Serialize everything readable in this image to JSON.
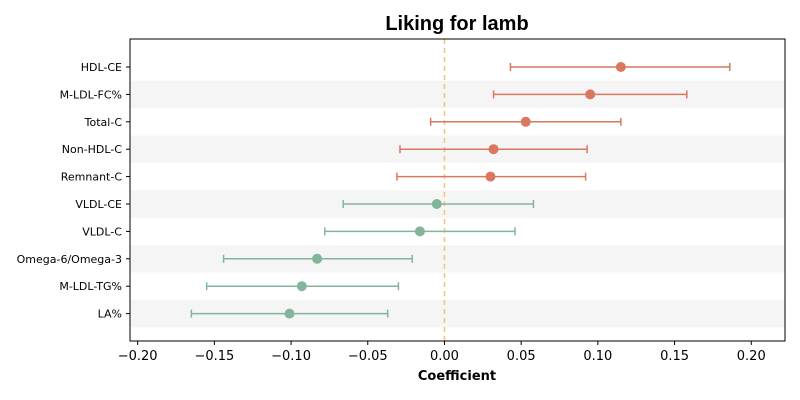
{
  "chart_data": {
    "type": "scatter",
    "title": "Liking for lamb",
    "xlabel": "Coefficient",
    "ylabel": "",
    "xlim": [
      -0.205,
      0.222
    ],
    "xticks": [
      -0.2,
      -0.15,
      -0.1,
      -0.05,
      0.0,
      0.05,
      0.1,
      0.15,
      0.2
    ],
    "xtick_labels": [
      "−0.20",
      "−0.15",
      "−0.10",
      "−0.05",
      "0.00",
      "0.05",
      "0.10",
      "0.15",
      "0.20"
    ],
    "reference_line": {
      "x": 0,
      "color": "#f5c27a",
      "style": "dashed"
    },
    "categories": [
      "HDL-CE",
      "M-LDL-FC%",
      "Total-C",
      "Non-HDL-C",
      "Remnant-C",
      "VLDL-CE",
      "VLDL-C",
      "Omega-6/Omega-3",
      "M-LDL-TG%",
      "LA%"
    ],
    "estimates": [
      0.115,
      0.095,
      0.053,
      0.032,
      0.03,
      -0.005,
      -0.016,
      -0.083,
      -0.093,
      -0.101
    ],
    "ci_low": [
      0.043,
      0.032,
      -0.009,
      -0.029,
      -0.031,
      -0.066,
      -0.078,
      -0.144,
      -0.155,
      -0.165
    ],
    "ci_high": [
      0.186,
      0.158,
      0.115,
      0.093,
      0.092,
      0.058,
      0.046,
      -0.021,
      -0.03,
      -0.037
    ],
    "colors": {
      "positive": "#d9775f",
      "negative": "#83b59b",
      "band": "#f5f5f5"
    },
    "banded_rows": true,
    "grid": false
  }
}
